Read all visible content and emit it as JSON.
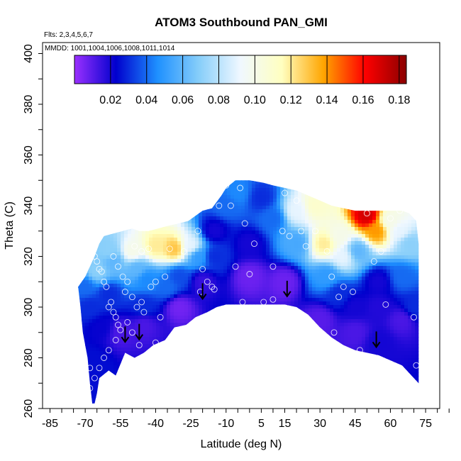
{
  "chart_data": {
    "type": "heatmap",
    "title": "ATOM3 Southbound PAN_GMI",
    "flights_note": "Flts: 2,3,4,5,6,7",
    "dates_note": "MMDD: 1001,1004,1006,1008,1011,1014",
    "xlabel": "Latitude (deg N)",
    "ylabel": "Theta (C)",
    "xlim": [
      -85,
      85
    ],
    "ylim": [
      260,
      400
    ],
    "x_tick_labels": [
      "-85",
      "-70",
      "-55",
      "-40",
      "-25",
      "-10",
      "5",
      "15",
      "30",
      "45",
      "60",
      "75"
    ],
    "x_tick_values": [
      -85,
      -70,
      -55,
      -40,
      -25,
      -10,
      5,
      15,
      30,
      45,
      60,
      75
    ],
    "y_tick_labels": [
      "260",
      "280",
      "300",
      "320",
      "340",
      "360",
      "380",
      "400"
    ],
    "y_tick_values": [
      260,
      280,
      300,
      320,
      340,
      360,
      380,
      400
    ],
    "colorbar": {
      "range": [
        0.0,
        0.184
      ],
      "tick_labels": [
        "0.02",
        "0.04",
        "0.06",
        "0.08",
        "0.10",
        "0.12",
        "0.14",
        "0.16",
        "0.18"
      ],
      "tick_values": [
        0.02,
        0.04,
        0.06,
        0.08,
        0.1,
        0.12,
        0.14,
        0.16,
        0.18
      ],
      "colors": [
        "#9b30ff",
        "#0000cd",
        "#1e90ff",
        "#87cefa",
        "#f0f8ff",
        "#ffffc0",
        "#ffa500",
        "#ff0000",
        "#8b0000"
      ]
    },
    "surface_upper": [
      [
        -73,
        308
      ],
      [
        -70,
        312
      ],
      [
        -66,
        320
      ],
      [
        -64,
        325
      ],
      [
        -62,
        328
      ],
      [
        -58,
        329
      ],
      [
        -54,
        330
      ],
      [
        -50,
        331
      ],
      [
        -47,
        330
      ],
      [
        -43,
        330
      ],
      [
        -39,
        331
      ],
      [
        -35,
        332
      ],
      [
        -30,
        333
      ],
      [
        -26,
        334
      ],
      [
        -23,
        336
      ],
      [
        -20,
        338
      ],
      [
        -16,
        339
      ],
      [
        -12,
        344
      ],
      [
        -10,
        347
      ],
      [
        -6,
        350
      ],
      [
        0,
        350
      ],
      [
        6,
        349
      ],
      [
        10,
        348
      ],
      [
        15,
        347
      ],
      [
        20,
        346
      ],
      [
        25,
        344
      ],
      [
        30,
        342
      ],
      [
        35,
        340
      ],
      [
        40,
        339
      ],
      [
        45,
        338
      ],
      [
        50,
        338
      ],
      [
        55,
        338
      ],
      [
        60,
        338
      ],
      [
        65,
        338
      ],
      [
        68,
        337
      ],
      [
        71,
        334
      ],
      [
        72,
        325
      ],
      [
        72,
        300
      ],
      [
        72,
        270
      ]
    ],
    "surface_lower": [
      [
        -73,
        308
      ],
      [
        -72,
        300
      ],
      [
        -71,
        290
      ],
      [
        -69,
        280
      ],
      [
        -68,
        270
      ],
      [
        -67,
        262
      ],
      [
        -66,
        262
      ],
      [
        -65,
        266
      ],
      [
        -64,
        272
      ],
      [
        -60,
        275
      ],
      [
        -57,
        273
      ],
      [
        -53,
        282
      ],
      [
        -49,
        280
      ],
      [
        -45,
        282
      ],
      [
        -41,
        285
      ],
      [
        -36,
        287
      ],
      [
        -32,
        292
      ],
      [
        -27,
        293
      ],
      [
        -23,
        296
      ],
      [
        -18,
        298
      ],
      [
        -14,
        300
      ],
      [
        -10,
        301
      ],
      [
        -5,
        301
      ],
      [
        0,
        301
      ],
      [
        5,
        301
      ],
      [
        10,
        301
      ],
      [
        15,
        301
      ],
      [
        20,
        300
      ],
      [
        25,
        297
      ],
      [
        30,
        292
      ],
      [
        35,
        288
      ],
      [
        40,
        285
      ],
      [
        45,
        283
      ],
      [
        50,
        282
      ],
      [
        55,
        281
      ],
      [
        60,
        279
      ],
      [
        65,
        277
      ],
      [
        72,
        270
      ]
    ],
    "value_field": [
      {
        "x": -65,
        "y": 314,
        "v": 0.07
      },
      {
        "x": -50,
        "y": 322,
        "v": 0.1
      },
      {
        "x": -40,
        "y": 324,
        "v": 0.12
      },
      {
        "x": -32,
        "y": 323,
        "v": 0.13
      },
      {
        "x": -25,
        "y": 324,
        "v": 0.09
      },
      {
        "x": -58,
        "y": 318,
        "v": 0.06
      },
      {
        "x": -48,
        "y": 315,
        "v": 0.06
      },
      {
        "x": -44,
        "y": 311,
        "v": 0.045
      },
      {
        "x": -60,
        "y": 305,
        "v": 0.03
      },
      {
        "x": -63,
        "y": 292,
        "v": 0.022
      },
      {
        "x": -55,
        "y": 290,
        "v": 0.012
      },
      {
        "x": -45,
        "y": 293,
        "v": 0.012
      },
      {
        "x": -30,
        "y": 300,
        "v": 0.006
      },
      {
        "x": -20,
        "y": 310,
        "v": 0.015
      },
      {
        "x": -30,
        "y": 312,
        "v": 0.035
      },
      {
        "x": -22,
        "y": 320,
        "v": 0.05
      },
      {
        "x": -15,
        "y": 330,
        "v": 0.02
      },
      {
        "x": -10,
        "y": 340,
        "v": 0.04
      },
      {
        "x": -5,
        "y": 345,
        "v": 0.045
      },
      {
        "x": 5,
        "y": 343,
        "v": 0.03
      },
      {
        "x": 0,
        "y": 325,
        "v": 0.02
      },
      {
        "x": 0,
        "y": 312,
        "v": 0.007
      },
      {
        "x": 15,
        "y": 310,
        "v": 0.007
      },
      {
        "x": 20,
        "y": 325,
        "v": 0.055
      },
      {
        "x": 20,
        "y": 338,
        "v": 0.09
      },
      {
        "x": 28,
        "y": 340,
        "v": 0.11
      },
      {
        "x": 32,
        "y": 325,
        "v": 0.12
      },
      {
        "x": 38,
        "y": 328,
        "v": 0.1
      },
      {
        "x": 40,
        "y": 320,
        "v": 0.09
      },
      {
        "x": 33,
        "y": 312,
        "v": 0.05
      },
      {
        "x": 38,
        "y": 305,
        "v": 0.03
      },
      {
        "x": 45,
        "y": 300,
        "v": 0.02
      },
      {
        "x": 50,
        "y": 336,
        "v": 0.17
      },
      {
        "x": 54,
        "y": 330,
        "v": 0.14
      },
      {
        "x": 46,
        "y": 322,
        "v": 0.06
      },
      {
        "x": 60,
        "y": 334,
        "v": 0.1
      },
      {
        "x": 64,
        "y": 330,
        "v": 0.09
      },
      {
        "x": 68,
        "y": 325,
        "v": 0.07
      },
      {
        "x": 65,
        "y": 312,
        "v": 0.04
      },
      {
        "x": 55,
        "y": 310,
        "v": 0.02
      },
      {
        "x": 55,
        "y": 300,
        "v": 0.018
      },
      {
        "x": 65,
        "y": 295,
        "v": 0.012
      },
      {
        "x": 70,
        "y": 300,
        "v": 0.03
      },
      {
        "x": 55,
        "y": 286,
        "v": 0.02
      },
      {
        "x": 45,
        "y": 290,
        "v": 0.012
      },
      {
        "x": 30,
        "y": 295,
        "v": 0.01
      },
      {
        "x": -66,
        "y": 278,
        "v": 0.025
      },
      {
        "x": -68,
        "y": 300,
        "v": 0.03
      },
      {
        "x": -70,
        "y": 308,
        "v": 0.04
      },
      {
        "x": -60,
        "y": 322,
        "v": 0.07
      },
      {
        "x": -45,
        "y": 300,
        "v": 0.03
      },
      {
        "x": -35,
        "y": 308,
        "v": 0.04
      },
      {
        "x": 10,
        "y": 335,
        "v": 0.04
      },
      {
        "x": -15,
        "y": 320,
        "v": 0.03
      }
    ],
    "observations": [
      [
        -67,
        326
      ],
      [
        -66,
        320
      ],
      [
        -65,
        318
      ],
      [
        -64,
        315
      ],
      [
        -63,
        314
      ],
      [
        -62,
        310
      ],
      [
        -61,
        308
      ],
      [
        -59,
        302
      ],
      [
        -60,
        300
      ],
      [
        -58,
        298
      ],
      [
        -57,
        296
      ],
      [
        -56,
        293
      ],
      [
        -55,
        291
      ],
      [
        -57,
        287
      ],
      [
        -60,
        283
      ],
      [
        -62,
        280
      ],
      [
        -64,
        276
      ],
      [
        -66,
        272
      ],
      [
        -68,
        268
      ],
      [
        -69,
        266
      ],
      [
        -68,
        276
      ],
      [
        -58,
        320
      ],
      [
        -56,
        316
      ],
      [
        -54,
        312
      ],
      [
        -52,
        310
      ],
      [
        -53,
        306
      ],
      [
        -50,
        304
      ],
      [
        -48,
        300
      ],
      [
        -46,
        302
      ],
      [
        -45,
        298
      ],
      [
        -52,
        294
      ],
      [
        -50,
        290
      ],
      [
        -47,
        285
      ],
      [
        -44,
        281
      ],
      [
        -42,
        279
      ],
      [
        -40,
        286
      ],
      [
        -38,
        296
      ],
      [
        -42,
        308
      ],
      [
        -40,
        310
      ],
      [
        -36,
        312
      ],
      [
        -49,
        324
      ],
      [
        -46,
        322
      ],
      [
        -43,
        323
      ],
      [
        -34,
        323
      ],
      [
        -28,
        322
      ],
      [
        -22,
        330
      ],
      [
        -20,
        315
      ],
      [
        -18,
        310
      ],
      [
        -16,
        308
      ],
      [
        -21,
        306
      ],
      [
        -15,
        307
      ],
      [
        -13,
        340
      ],
      [
        -10,
        348
      ],
      [
        -8,
        340
      ],
      [
        -4,
        347
      ],
      [
        -2,
        333
      ],
      [
        0,
        313
      ],
      [
        -6,
        316
      ],
      [
        -3,
        302
      ],
      [
        0,
        298
      ],
      [
        6,
        302
      ],
      [
        10,
        303
      ],
      [
        10,
        316
      ],
      [
        2,
        325
      ],
      [
        14,
        330
      ],
      [
        17,
        328
      ],
      [
        15,
        345
      ],
      [
        20,
        342
      ],
      [
        22,
        330
      ],
      [
        24,
        324
      ],
      [
        28,
        330
      ],
      [
        33,
        322
      ],
      [
        35,
        312
      ],
      [
        38,
        304
      ],
      [
        36,
        290
      ],
      [
        40,
        308
      ],
      [
        44,
        306
      ],
      [
        47,
        283
      ],
      [
        50,
        337
      ],
      [
        53,
        318
      ],
      [
        56,
        322
      ],
      [
        58,
        301
      ],
      [
        60,
        335
      ],
      [
        64,
        338
      ],
      [
        70,
        296
      ],
      [
        71,
        277
      ]
    ],
    "arrows": [
      [
        -53,
        284
      ],
      [
        -47,
        285
      ],
      [
        -20,
        301
      ],
      [
        16,
        302
      ],
      [
        54,
        282
      ]
    ]
  }
}
